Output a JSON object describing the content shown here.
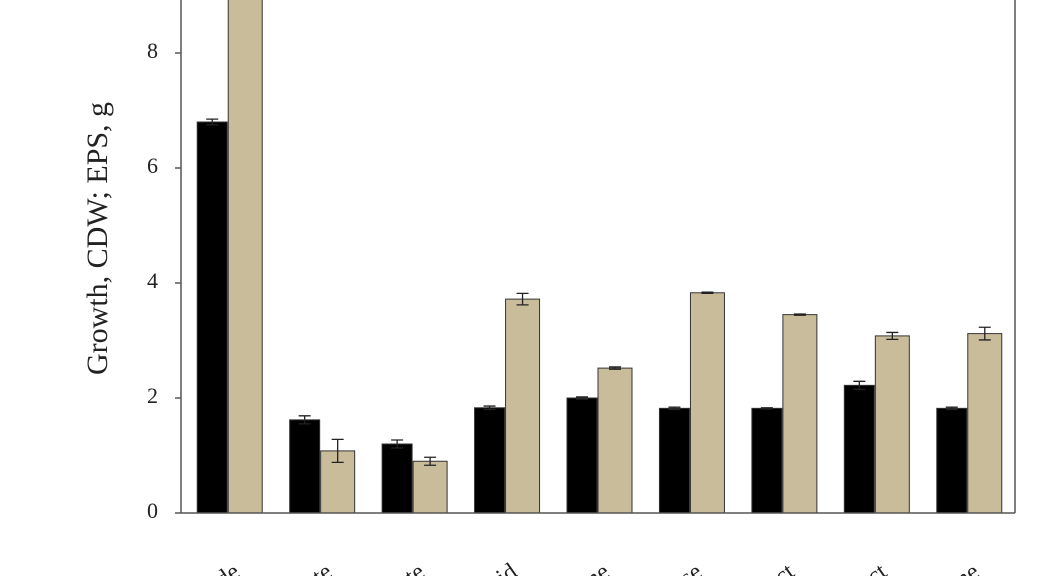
{
  "chart_data": {
    "type": "bar",
    "y_label": "Growth, CDW; EPS, g",
    "categories": [
      "ide",
      "ate",
      "ate",
      "cid",
      "one",
      "ose",
      "act",
      "act",
      "one"
    ],
    "series": [
      {
        "color": "#000000",
        "values": [
          6.8,
          1.62,
          1.2,
          1.83,
          2.0,
          1.82,
          1.82,
          2.22,
          1.82
        ],
        "errors": [
          0.05,
          0.07,
          0.07,
          0.03,
          0.02,
          0.02,
          0.01,
          0.07,
          0.02
        ]
      },
      {
        "color": "#c8bc9a",
        "values": [
          9.6,
          1.08,
          0.9,
          3.72,
          2.52,
          3.83,
          3.45,
          3.08,
          3.12
        ],
        "errors": [
          0.1,
          0.2,
          0.07,
          0.1,
          0.02,
          0.01,
          0.01,
          0.06,
          0.11
        ]
      }
    ],
    "ylim": [
      0,
      10
    ],
    "yticks": [
      0,
      2,
      4,
      6,
      8
    ],
    "grid": false
  }
}
